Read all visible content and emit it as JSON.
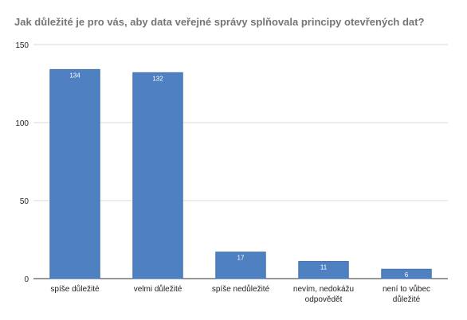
{
  "chart_data": {
    "type": "bar",
    "title": "Jak důležité je pro vás, aby data veřejné správy splňovala principy otevřených dat?",
    "xlabel": "",
    "ylabel": "",
    "categories": [
      [
        "spíše důležité"
      ],
      [
        "velmi důležité"
      ],
      [
        "spíše nedůležité"
      ],
      [
        "nevím, nedokážu",
        "odpovědět"
      ],
      [
        "není to vůbec",
        "důležité"
      ]
    ],
    "values": [
      134,
      132,
      17,
      11,
      6
    ],
    "data_labels": [
      "134",
      "132",
      "17",
      "11",
      "6"
    ],
    "ylim": [
      0,
      150
    ],
    "yticks": [
      0,
      50,
      100,
      150
    ],
    "ytick_labels": [
      "0",
      "50",
      "100",
      "150"
    ],
    "grid": true,
    "legend": "none",
    "colors": {
      "bar": "#4f81c2",
      "bar_edge": "#3f6ea8",
      "grid": "#d9d9d9",
      "axis": "#333333",
      "title": "#757575",
      "data_label": "#ffffff"
    }
  }
}
